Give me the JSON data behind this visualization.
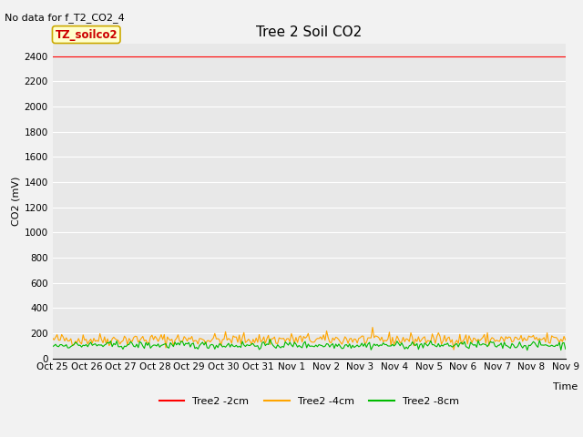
{
  "title": "Tree 2 Soil CO2",
  "top_left_text": "No data for f_T2_CO2_4",
  "ylabel": "CO2 (mV)",
  "xlabel": "Time",
  "ylim": [
    0,
    2500
  ],
  "yticks": [
    0,
    200,
    400,
    600,
    800,
    1000,
    1200,
    1400,
    1600,
    1800,
    2000,
    2200,
    2400
  ],
  "xtick_labels": [
    "Oct 25",
    "Oct 26",
    "Oct 27",
    "Oct 28",
    "Oct 29",
    "Oct 30",
    "Oct 31",
    "Nov 1",
    "Nov 2",
    "Nov 3",
    "Nov 4",
    "Nov 5",
    "Nov 6",
    "Nov 7",
    "Nov 8",
    "Nov 9"
  ],
  "n_points": 336,
  "red_line_value": 2400,
  "orange_mean": 150,
  "orange_std": 25,
  "green_mean": 105,
  "green_std": 15,
  "line_colors": [
    "#ff0000",
    "#ffa500",
    "#00bb00"
  ],
  "line_labels": [
    "Tree2 -2cm",
    "Tree2 -4cm",
    "Tree2 -8cm"
  ],
  "legend_box_label": "TZ_soilco2",
  "legend_box_facecolor": "#ffffcc",
  "legend_box_edgecolor": "#ccaa00",
  "plot_bg_color": "#e8e8e8",
  "fig_bg_color": "#f2f2f2",
  "grid_color": "#ffffff",
  "title_fontsize": 11,
  "label_fontsize": 8,
  "tick_fontsize": 7.5,
  "annotation_fontsize": 8,
  "legend_fontsize": 8
}
